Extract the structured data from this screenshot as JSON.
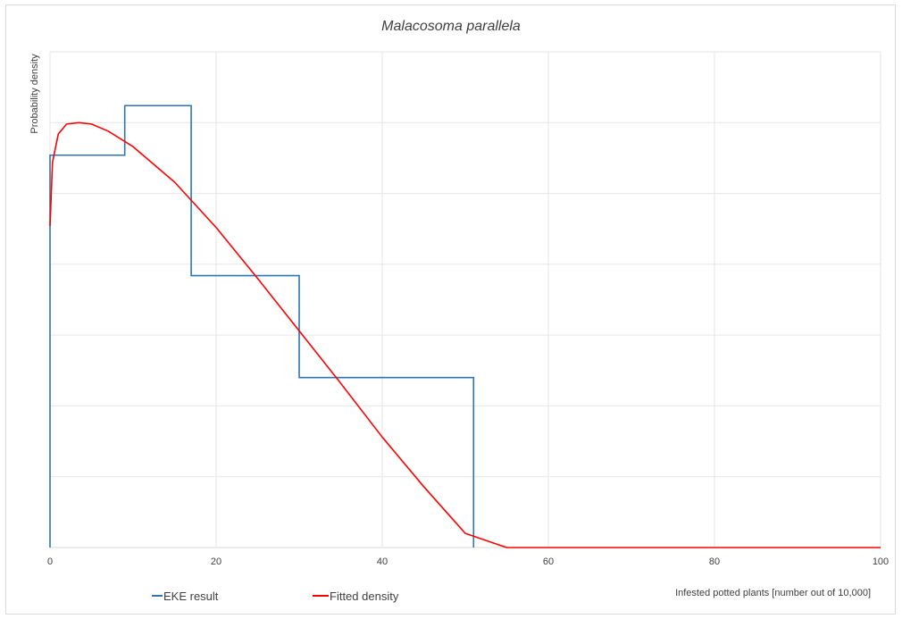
{
  "chart_data": {
    "type": "line",
    "title": "Malacosoma parallela",
    "xlabel": "Infested potted plants  [number out of 10,000]",
    "ylabel": "Probability density",
    "xlim": [
      0,
      100
    ],
    "ylim": [
      0,
      0.035
    ],
    "x_ticks": [
      "0",
      "20",
      "40",
      "60",
      "80",
      "100"
    ],
    "grid": true,
    "legend_position": "bottom-left",
    "series": [
      {
        "name": "EKE result",
        "color": "#2e75b6",
        "style": "step",
        "x": [
          0,
          9,
          17,
          30,
          51
        ],
        "values": [
          0.0277,
          0.0312,
          0.0192,
          0.012,
          0
        ]
      },
      {
        "name": "Fitted density",
        "color": "#ff0000",
        "style": "curve",
        "x": [
          0,
          0.3,
          1,
          2,
          3.5,
          5,
          7,
          10,
          15,
          20,
          25,
          30,
          35,
          40,
          45,
          50,
          52,
          54,
          55,
          60,
          70,
          80,
          90,
          100
        ],
        "values": [
          0.0227,
          0.0272,
          0.0292,
          0.0299,
          0.03,
          0.0299,
          0.0294,
          0.0283,
          0.0258,
          0.0226,
          0.019,
          0.0153,
          0.0116,
          0.0078,
          0.0043,
          0.001,
          0.0006,
          0.0002,
          0,
          0,
          0,
          0,
          0,
          0
        ]
      }
    ]
  }
}
